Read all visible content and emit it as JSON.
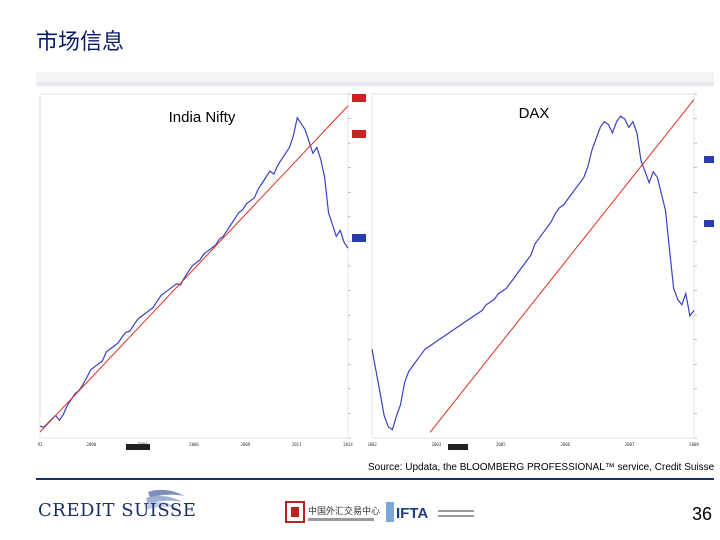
{
  "slide": {
    "title": "市场信息",
    "source": "Source: Updata, the BLOOMBERG PROFESSIONAL™ service, Credit Suisse",
    "page_number": "36",
    "footer": {
      "brand": "CREDIT SUISSE",
      "partner_1": "中国外汇交易中心",
      "partner_2": "IFTA"
    }
  },
  "colors": {
    "title": "#0a1a6b",
    "series": "#3b3fc4",
    "trendline": "#e03020",
    "footer_rule": "#1a2e6b"
  },
  "chart_data": [
    {
      "type": "line",
      "title": "India Nifty",
      "x_ticks": [
        "92",
        "2000",
        "2003",
        "2006",
        "2009",
        "2011",
        "2014"
      ],
      "series": [
        {
          "values": [
            1.0,
            0.98,
            1.05,
            1.12,
            1.18,
            1.1,
            1.2,
            1.35,
            1.45,
            1.55,
            1.6,
            1.7,
            1.82,
            1.95,
            2.0,
            2.05,
            2.1,
            2.25,
            2.3,
            2.35,
            2.4,
            2.5,
            2.58,
            2.6,
            2.7,
            2.8,
            2.85,
            2.9,
            2.95,
            3.0,
            3.1,
            3.2,
            3.25,
            3.3,
            3.35,
            3.4,
            3.38,
            3.5,
            3.6,
            3.7,
            3.75,
            3.8,
            3.9,
            3.95,
            4.0,
            4.05,
            4.15,
            4.2,
            4.3,
            4.4,
            4.5,
            4.6,
            4.65,
            4.75,
            4.8,
            4.85,
            5.0,
            5.1,
            5.2,
            5.3,
            5.25,
            5.4,
            5.5,
            5.6,
            5.7,
            5.9,
            6.2,
            6.1,
            6.0,
            5.8,
            5.6,
            5.7,
            5.5,
            5.2,
            4.6,
            4.4,
            4.2,
            4.3,
            4.1,
            4.0
          ]
        }
      ],
      "trendline": {
        "start": [
          0,
          0.9
        ],
        "end": [
          1,
          6.4
        ]
      },
      "ylim": [
        0.8,
        6.6
      ]
    },
    {
      "type": "line",
      "title": "DAX",
      "x_ticks": [
        "2002",
        "2003",
        "2005",
        "2006",
        "2007",
        "2008"
      ],
      "series": [
        {
          "values": [
            2.4,
            2.0,
            1.6,
            1.2,
            1.0,
            0.95,
            1.2,
            1.4,
            1.8,
            2.0,
            2.1,
            2.2,
            2.3,
            2.4,
            2.45,
            2.5,
            2.55,
            2.6,
            2.65,
            2.7,
            2.75,
            2.8,
            2.85,
            2.9,
            2.95,
            3.0,
            3.05,
            3.1,
            3.2,
            3.25,
            3.3,
            3.4,
            3.45,
            3.5,
            3.6,
            3.7,
            3.8,
            3.9,
            4.0,
            4.1,
            4.3,
            4.4,
            4.5,
            4.6,
            4.7,
            4.85,
            4.95,
            5.0,
            5.1,
            5.2,
            5.3,
            5.4,
            5.5,
            5.7,
            6.0,
            6.2,
            6.4,
            6.5,
            6.45,
            6.3,
            6.5,
            6.6,
            6.55,
            6.4,
            6.5,
            6.3,
            5.8,
            5.6,
            5.4,
            5.6,
            5.5,
            5.2,
            4.9,
            4.2,
            3.5,
            3.3,
            3.2,
            3.4,
            3.0,
            3.1
          ]
        }
      ],
      "trendline": {
        "start": [
          0.18,
          0.9
        ],
        "end": [
          1,
          6.9
        ]
      },
      "ylim": [
        0.8,
        7.0
      ]
    }
  ]
}
